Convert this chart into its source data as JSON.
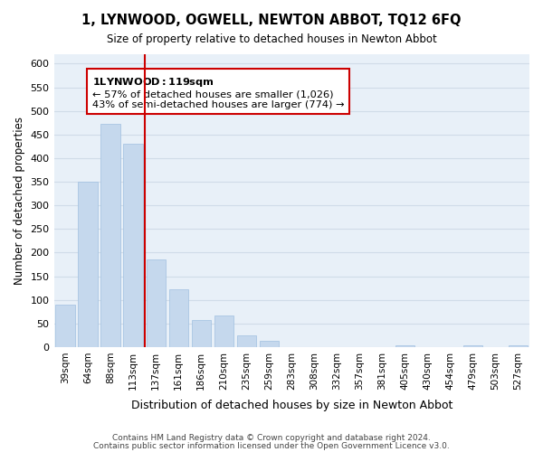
{
  "title": "1, LYNWOOD, OGWELL, NEWTON ABBOT, TQ12 6FQ",
  "subtitle": "Size of property relative to detached houses in Newton Abbot",
  "xlabel": "Distribution of detached houses by size in Newton Abbot",
  "ylabel": "Number of detached properties",
  "categories": [
    "39sqm",
    "64sqm",
    "88sqm",
    "113sqm",
    "137sqm",
    "161sqm",
    "186sqm",
    "210sqm",
    "235sqm",
    "259sqm",
    "283sqm",
    "308sqm",
    "332sqm",
    "357sqm",
    "381sqm",
    "405sqm",
    "430sqm",
    "454sqm",
    "479sqm",
    "503sqm",
    "527sqm"
  ],
  "values": [
    90,
    350,
    472,
    430,
    185,
    123,
    57,
    67,
    25,
    13,
    0,
    0,
    0,
    0,
    0,
    3,
    0,
    0,
    3,
    0,
    3
  ],
  "bar_color": "#c5d8ed",
  "bar_edge_color": "#a0c0e0",
  "highlight_index": 3,
  "highlight_line_color": "#cc0000",
  "ylim": [
    0,
    620
  ],
  "yticks": [
    0,
    50,
    100,
    150,
    200,
    250,
    300,
    350,
    400,
    450,
    500,
    550,
    600
  ],
  "annotation_title": "1 LYNWOOD: 119sqm",
  "annotation_line1": "← 57% of detached houses are smaller (1,026)",
  "annotation_line2": "43% of semi-detached houses are larger (774) →",
  "annotation_box_color": "#ffffff",
  "annotation_box_edge": "#cc0000",
  "footer_line1": "Contains HM Land Registry data © Crown copyright and database right 2024.",
  "footer_line2": "Contains public sector information licensed under the Open Government Licence v3.0.",
  "background_color": "#ffffff",
  "grid_color": "#d0dce8"
}
